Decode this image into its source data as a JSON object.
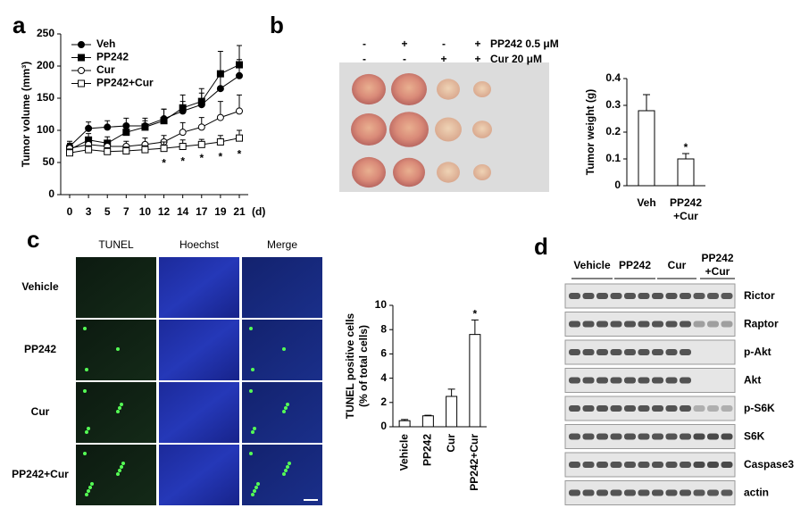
{
  "panel_labels": [
    "a",
    "b",
    "c",
    "d"
  ],
  "chart_data": [
    {
      "type": "line",
      "ylabel": "Tumor volume (mm³)",
      "xlabel": "(d)",
      "categories": [
        "0",
        "3",
        "5",
        "7",
        "10",
        "12",
        "14",
        "17",
        "19",
        "21"
      ],
      "ylim": [
        0,
        250
      ],
      "yticks": [
        0,
        50,
        100,
        150,
        200,
        250
      ],
      "series": [
        {
          "name": "Veh",
          "color": "#000000",
          "marker": "circle",
          "filled": true,
          "values": [
            75,
            103,
            105,
            107,
            107,
            118,
            130,
            140,
            165,
            185
          ],
          "errors": [
            8,
            10,
            10,
            12,
            12,
            15,
            15,
            18,
            20,
            25
          ]
        },
        {
          "name": "PP242",
          "color": "#000000",
          "marker": "square",
          "filled": true,
          "values": [
            70,
            85,
            80,
            97,
            105,
            115,
            135,
            145,
            188,
            202
          ],
          "errors": [
            8,
            10,
            10,
            10,
            10,
            18,
            20,
            20,
            35,
            30
          ]
        },
        {
          "name": "Cur",
          "color": "#000000",
          "marker": "circle",
          "filled": false,
          "values": [
            72,
            78,
            75,
            75,
            78,
            82,
            97,
            105,
            120,
            130
          ],
          "errors": [
            8,
            8,
            8,
            8,
            10,
            10,
            15,
            15,
            25,
            25
          ]
        },
        {
          "name": "PP242+Cur",
          "color": "#000000",
          "marker": "square",
          "filled": false,
          "values": [
            65,
            70,
            67,
            68,
            70,
            72,
            75,
            78,
            82,
            88
          ],
          "errors": [
            6,
            6,
            6,
            6,
            6,
            10,
            10,
            8,
            10,
            12
          ]
        }
      ],
      "annotations": [
        {
          "x": "12",
          "text": "*"
        },
        {
          "x": "14",
          "text": "*"
        },
        {
          "x": "17",
          "text": "*"
        },
        {
          "x": "19",
          "text": "*"
        },
        {
          "x": "21",
          "text": "*"
        }
      ]
    },
    {
      "type": "bar",
      "ylabel": "Tumor weight (g)",
      "categories": [
        "Veh",
        "PP242\n+Cur"
      ],
      "values": [
        0.28,
        0.1
      ],
      "errors": [
        0.06,
        0.02
      ],
      "color": "#ffffff",
      "ylim": [
        0,
        0.4
      ],
      "yticks": [
        0,
        0.1,
        0.2,
        0.3,
        0.4
      ],
      "annotations": [
        {
          "x": "PP242\n+Cur",
          "text": "*"
        }
      ]
    },
    {
      "type": "bar",
      "ylabel": "TUNEL positive cells\n(% of total cells)",
      "categories": [
        "Vehicle",
        "PP242",
        "Cur",
        "PP242+Cur"
      ],
      "values": [
        0.5,
        0.9,
        2.5,
        7.6
      ],
      "errors": [
        0.1,
        0.05,
        0.6,
        1.2
      ],
      "color": "#ffffff",
      "ylim": [
        0,
        10
      ],
      "yticks": [
        0,
        2,
        4,
        6,
        8,
        10
      ],
      "rotate_labels": true,
      "annotations": [
        {
          "x": "PP242+Cur",
          "text": "*"
        }
      ]
    }
  ],
  "photo": {
    "rows": [
      {
        "label": "PP242 0.5 μM",
        "signs": [
          "-",
          "+",
          "-",
          "+"
        ]
      },
      {
        "label": "Cur 20 μM",
        "signs": [
          "-",
          "-",
          "+",
          "+"
        ]
      }
    ]
  },
  "microscopy": {
    "columns": [
      "TUNEL",
      "Hoechst",
      "Merge"
    ],
    "rows": [
      "Vehicle",
      "PP242",
      "Cur",
      "PP242+Cur"
    ]
  },
  "western": {
    "groups": [
      "Vehicle",
      "PP242",
      "Cur",
      "PP242\n+Cur"
    ],
    "rows": [
      "Rictor",
      "Raptor",
      "p-Akt",
      "Akt",
      "p-S6K",
      "S6K",
      "Caspase3",
      "actin"
    ]
  }
}
